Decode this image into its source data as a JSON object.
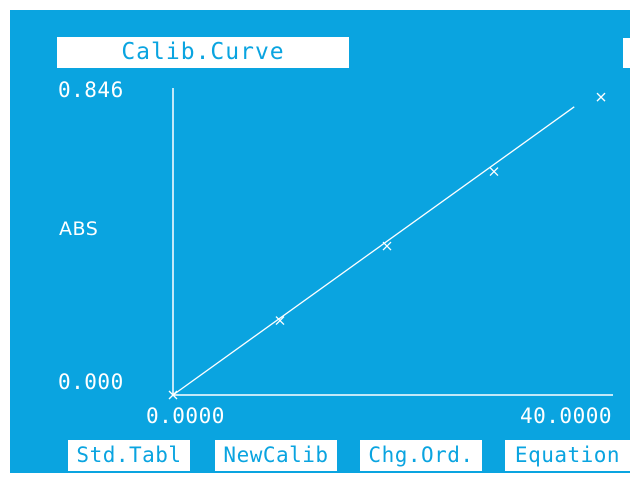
{
  "header": {
    "title": "Calib.Curve"
  },
  "chart_data": {
    "type": "scatter",
    "title": "Calib.Curve",
    "ylabel": "ABS",
    "xlabel": "",
    "x_tick_labels": [
      "0.0000",
      "40.0000"
    ],
    "y_tick_labels": [
      "0.000",
      "0.846"
    ],
    "xlim": [
      0,
      40
    ],
    "ylim": [
      0,
      0.846
    ],
    "points": [
      {
        "x": 0,
        "y": 0
      },
      {
        "x": 10,
        "y": 0.2
      },
      {
        "x": 20,
        "y": 0.4
      },
      {
        "x": 30,
        "y": 0.6
      },
      {
        "x": 40,
        "y": 0.8
      }
    ],
    "fit_line": {
      "x": [
        0,
        37.5
      ],
      "y": [
        0,
        0.774
      ]
    },
    "colors": {
      "background": "#0aa4e0",
      "foreground": "#ffffff"
    }
  },
  "softkeys": [
    {
      "label": "Std.Tabl"
    },
    {
      "label": "NewCalib"
    },
    {
      "label": "Chg.Ord."
    },
    {
      "label": "Equation"
    }
  ]
}
